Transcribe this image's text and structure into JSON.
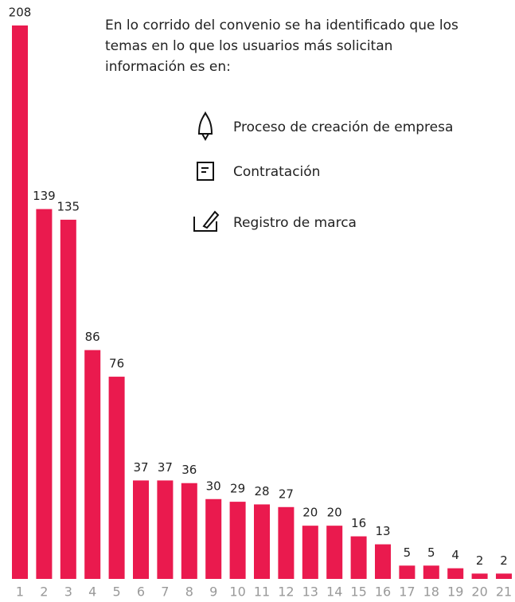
{
  "chart_data": {
    "type": "bar",
    "annotation": [
      "En lo corrido del convenio se ha identificado que los",
      "temas en lo que los usuarios más solicitan",
      "información es en:"
    ],
    "items": [
      "Proceso de creación de empresa",
      "Contratación",
      "Registro de marca"
    ],
    "categories": [
      1,
      2,
      3,
      4,
      5,
      6,
      7,
      8,
      9,
      10,
      11,
      12,
      13,
      14,
      15,
      16,
      17,
      18,
      19,
      20,
      21
    ],
    "values": [
      208,
      139,
      135,
      86,
      76,
      37,
      37,
      36,
      30,
      29,
      28,
      27,
      20,
      20,
      16,
      13,
      5,
      5,
      4,
      2,
      2
    ],
    "color": "#ea1a4e"
  }
}
